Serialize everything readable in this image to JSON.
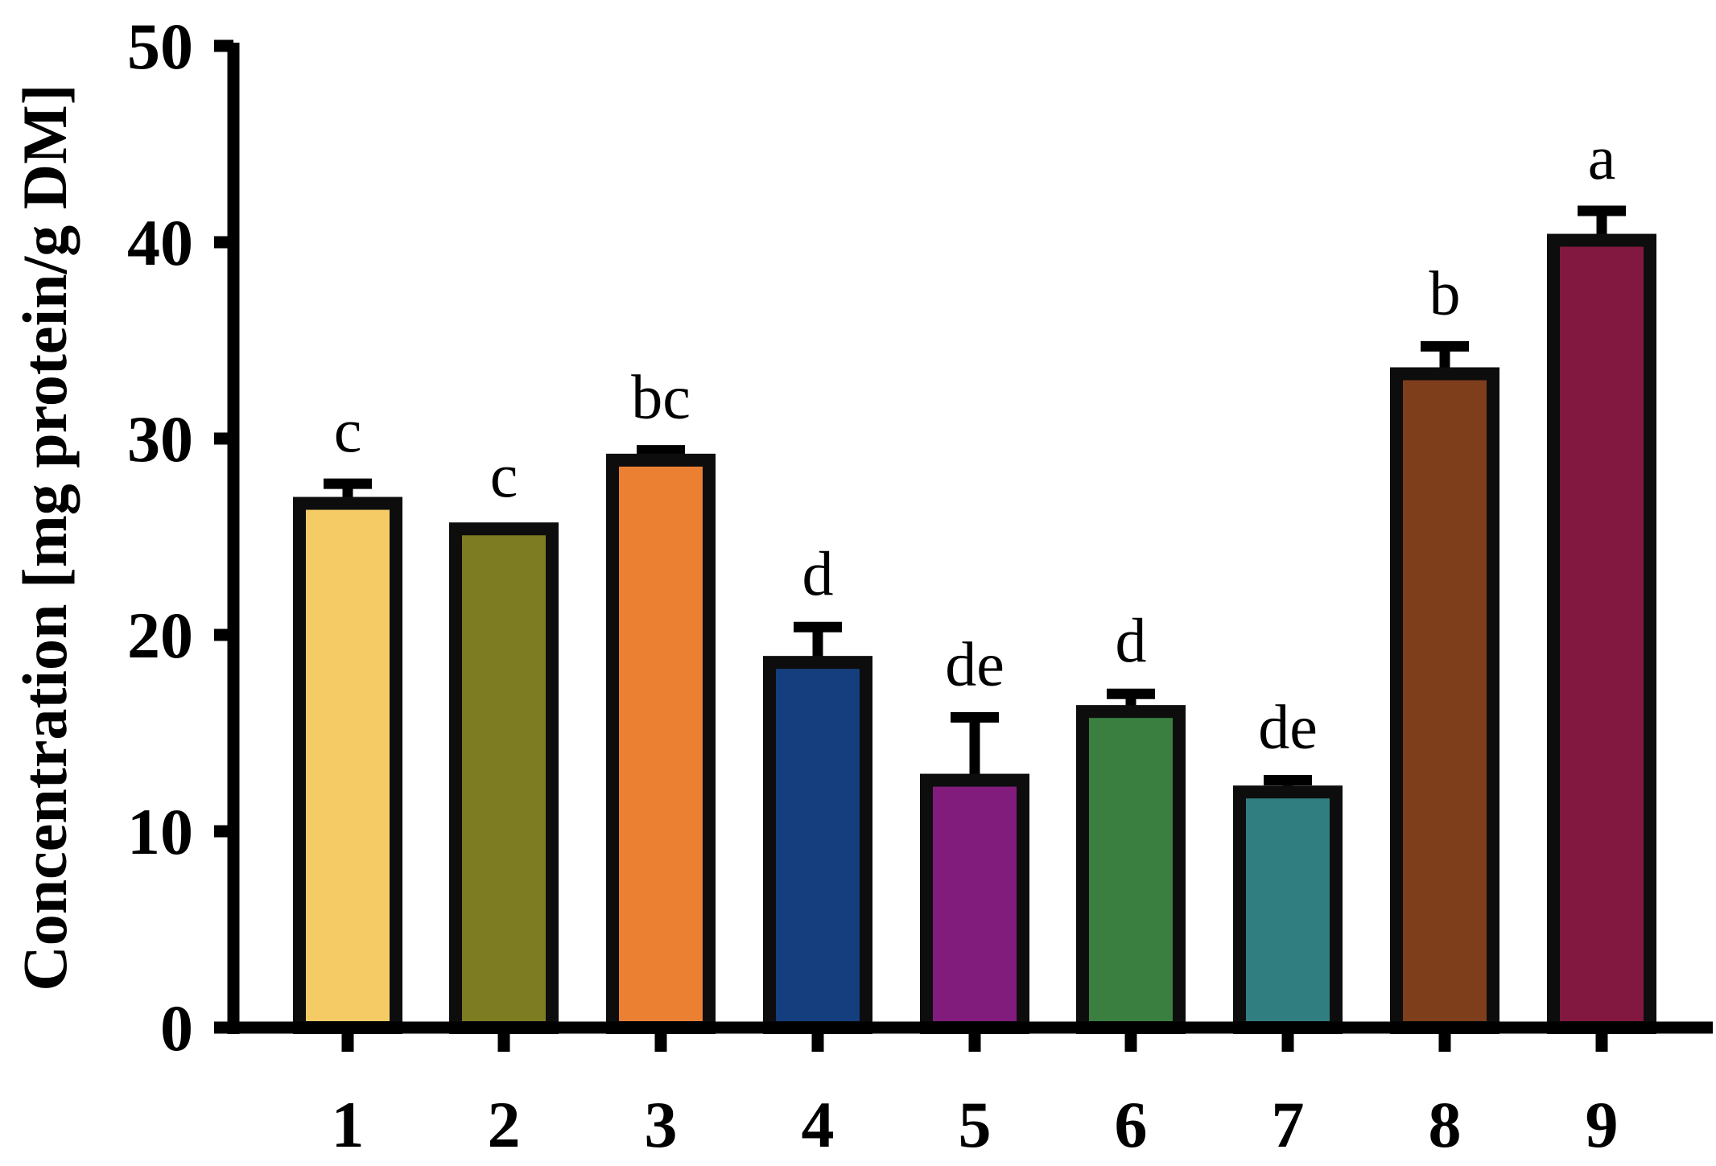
{
  "chart_data": {
    "type": "bar",
    "ylabel": "Concentration [mg protein/g DM]",
    "xlabel": "",
    "ylim": [
      0,
      50
    ],
    "yticks": [
      0,
      10,
      20,
      30,
      40,
      50
    ],
    "categories": [
      "1",
      "2",
      "3",
      "4",
      "5",
      "6",
      "7",
      "8",
      "9"
    ],
    "values": [
      26.7,
      25.4,
      28.9,
      18.6,
      12.6,
      16.1,
      12.0,
      33.3,
      40.1
    ],
    "errors": [
      1.0,
      0.0,
      0.5,
      1.8,
      3.2,
      0.9,
      0.6,
      1.4,
      1.5
    ],
    "significance": [
      "c",
      "c",
      "bc",
      "d",
      "de",
      "d",
      "de",
      "b",
      "a"
    ],
    "colors": [
      "#F5CB66",
      "#7E7C22",
      "#EB8033",
      "#143E7E",
      "#821C7C",
      "#3A7F40",
      "#317E80",
      "#7E3E1B",
      "#82173F"
    ],
    "grid": false,
    "legend": "none"
  }
}
